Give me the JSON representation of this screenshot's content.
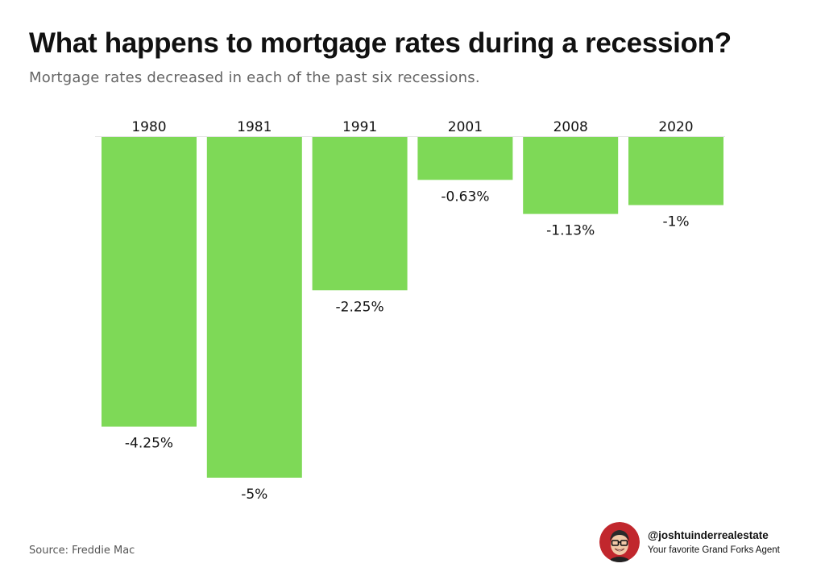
{
  "title": "What happens to mortgage rates during a recession?",
  "subtitle": "Mortgage rates decreased in each of the past six recessions.",
  "source": "Source: Freddie Mac",
  "branding": {
    "handle": "@joshtuinderrealestate",
    "tagline": "Your favorite Grand Forks Agent"
  },
  "colors": {
    "bar": "#7ed957",
    "avatar_background": "#c1272d"
  },
  "chart_data": {
    "type": "bar",
    "categories": [
      "1980",
      "1981",
      "1991",
      "2001",
      "2008",
      "2020"
    ],
    "values": [
      -4.25,
      -5,
      -2.25,
      -0.63,
      -1.13,
      -1
    ],
    "value_labels": [
      "-4.25%",
      "-5%",
      "-2.25%",
      "-0.63%",
      "-1.13%",
      "-1%"
    ],
    "ylim": [
      -5,
      0
    ],
    "category_label_position": "top",
    "value_label_position": "below bar",
    "grid": false,
    "legend": "none"
  }
}
